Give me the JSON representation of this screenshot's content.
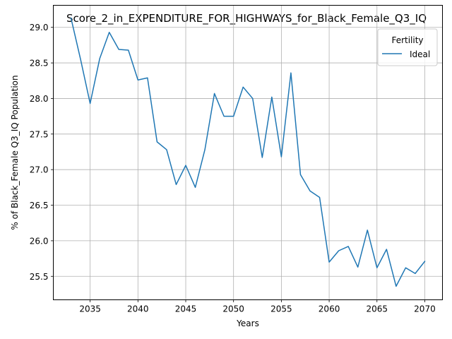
{
  "chart_data": {
    "type": "line",
    "title": "Score_2_in_EXPENDITURE_FOR_HIGHWAYS_for_Black_Female_Q3_IQ",
    "xlabel": "Years",
    "ylabel": "% of Black_Female Q3_IQ Population",
    "xlim": [
      2031.15,
      2071.85
    ],
    "ylim": [
      25.17,
      29.31
    ],
    "xticks": [
      2035,
      2040,
      2045,
      2050,
      2055,
      2060,
      2065,
      2070
    ],
    "yticks": [
      25.5,
      26.0,
      26.5,
      27.0,
      27.5,
      28.0,
      28.5,
      29.0
    ],
    "xtick_labels": [
      "2035",
      "2040",
      "2045",
      "2050",
      "2055",
      "2060",
      "2065",
      "2070"
    ],
    "ytick_labels": [
      "25.5",
      "26.0",
      "26.5",
      "27.0",
      "27.5",
      "28.0",
      "28.5",
      "29.0"
    ],
    "grid": true,
    "legend": {
      "title": "Fertility",
      "placement": "top-right"
    },
    "series": [
      {
        "name": "Ideal",
        "color": "#1f77b4",
        "x": [
          2033,
          2034,
          2035,
          2036,
          2037,
          2038,
          2039,
          2040,
          2041,
          2042,
          2043,
          2044,
          2045,
          2046,
          2047,
          2048,
          2049,
          2050,
          2051,
          2052,
          2053,
          2054,
          2055,
          2056,
          2057,
          2058,
          2059,
          2060,
          2061,
          2062,
          2063,
          2064,
          2065,
          2066,
          2067,
          2068,
          2069,
          2070
        ],
        "y": [
          29.13,
          28.55,
          27.93,
          28.56,
          28.93,
          28.69,
          28.68,
          28.26,
          28.29,
          27.39,
          27.28,
          26.79,
          27.06,
          26.75,
          27.28,
          28.07,
          27.75,
          27.75,
          28.16,
          28.0,
          27.17,
          28.02,
          27.18,
          28.36,
          26.93,
          26.7,
          26.61,
          25.7,
          25.86,
          25.92,
          25.63,
          26.15,
          25.62,
          25.88,
          25.36,
          25.62,
          25.54,
          25.71
        ]
      }
    ]
  }
}
